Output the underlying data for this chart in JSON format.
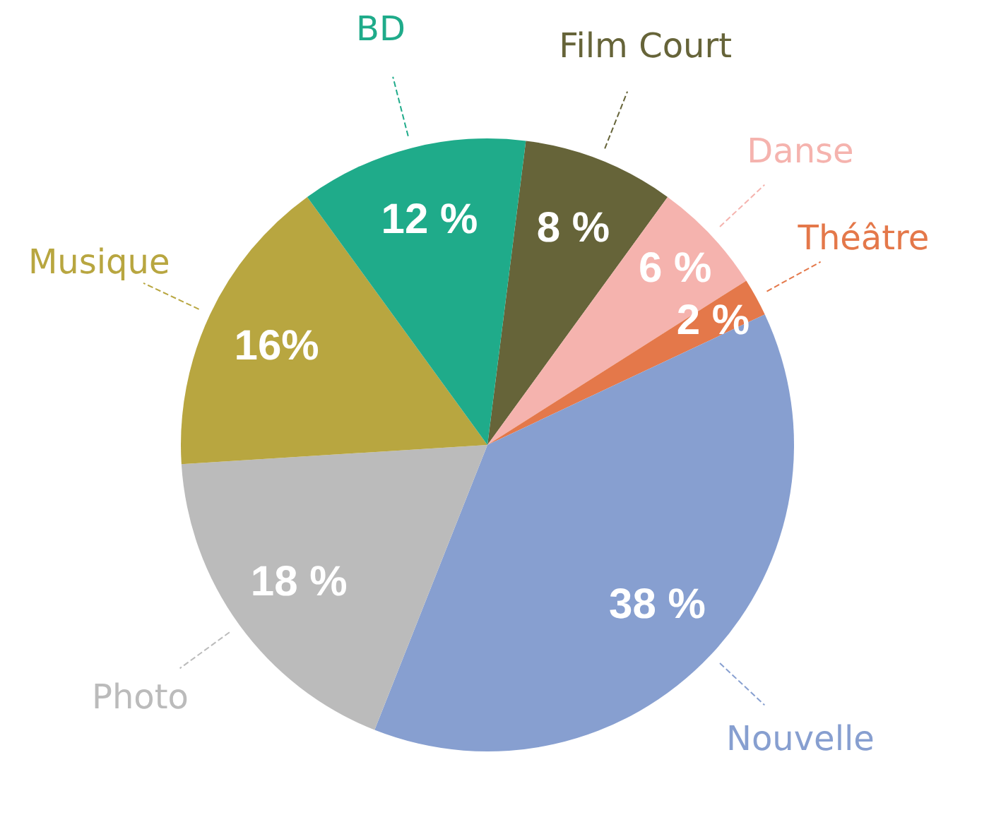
{
  "chart_data": {
    "type": "pie",
    "categories": [
      "Film Court",
      "Danse",
      "Théâtre",
      "Nouvelle",
      "Photo",
      "Musique",
      "BD"
    ],
    "values": [
      8,
      6,
      2,
      38,
      18,
      16,
      12
    ],
    "colors": [
      "#666439",
      "#f5b3ae",
      "#e4784a",
      "#879fd0",
      "#bbbbbb",
      "#b8a640",
      "#1fab8a"
    ],
    "value_labels": [
      "8 %",
      "6 %",
      "2 %",
      "38 %",
      "18 %",
      "16%",
      "12 %"
    ]
  }
}
